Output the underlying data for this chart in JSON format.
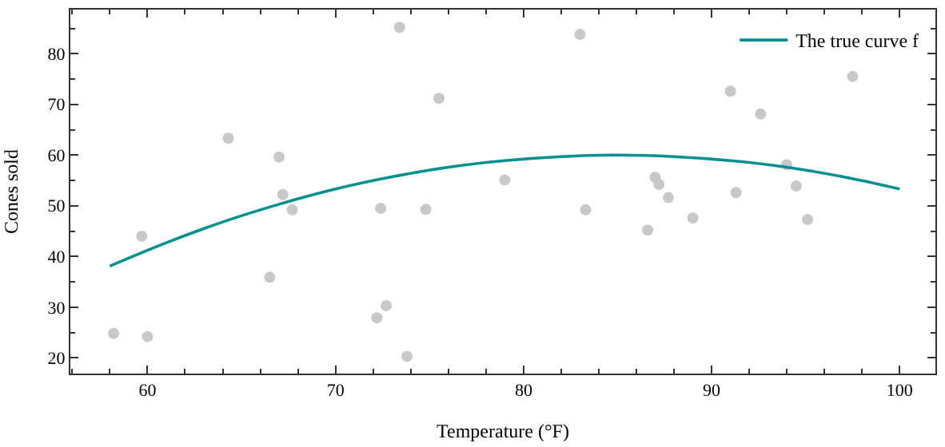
{
  "chart_data": {
    "type": "scatter",
    "xlabel": "Temperature (°F)",
    "ylabel": "Cones sold",
    "xlim": [
      55.9,
      101.9
    ],
    "ylim": [
      16.9,
      88.7
    ],
    "xticks": [
      60,
      70,
      80,
      90,
      100
    ],
    "yticks": [
      20,
      30,
      40,
      50,
      60,
      70,
      80
    ],
    "legend": "top right",
    "marker": "circle",
    "series": [
      {
        "color": "#c8c8c8",
        "x": [
          58.2,
          59.7,
          60,
          64.3,
          66.5,
          67,
          67.2,
          67.7,
          72.2,
          72.4,
          72.7,
          73.4,
          73.8,
          74.8,
          75.5,
          79,
          83,
          83.3,
          86.6,
          87,
          87.2,
          87.7,
          89,
          91,
          91.3,
          92.6,
          94,
          94.5,
          95.1,
          97.5
        ],
        "values": [
          24.8,
          44,
          24.2,
          63.3,
          35.9,
          59.6,
          52.2,
          49.2,
          27.9,
          49.5,
          30.3,
          85.2,
          20.3,
          49.3,
          71.2,
          55.1,
          83.8,
          49.2,
          45.2,
          55.6,
          54.2,
          51.6,
          47.6,
          72.6,
          52.6,
          68.1,
          58.1,
          53.9,
          47.3,
          75.5
        ]
      },
      {
        "type": "line",
        "name": "The true curve f",
        "color": "#009090",
        "marker": "none",
        "x": [
          58,
          61,
          64,
          67,
          70,
          73,
          76,
          79,
          82,
          85,
          88,
          91,
          94,
          97,
          100
        ],
        "values": [
          38.1,
          42.7,
          46.8,
          50.3,
          53.3,
          55.7,
          57.6,
          58.9,
          59.7,
          60.0,
          59.7,
          58.9,
          57.6,
          55.7,
          53.3
        ]
      }
    ]
  }
}
